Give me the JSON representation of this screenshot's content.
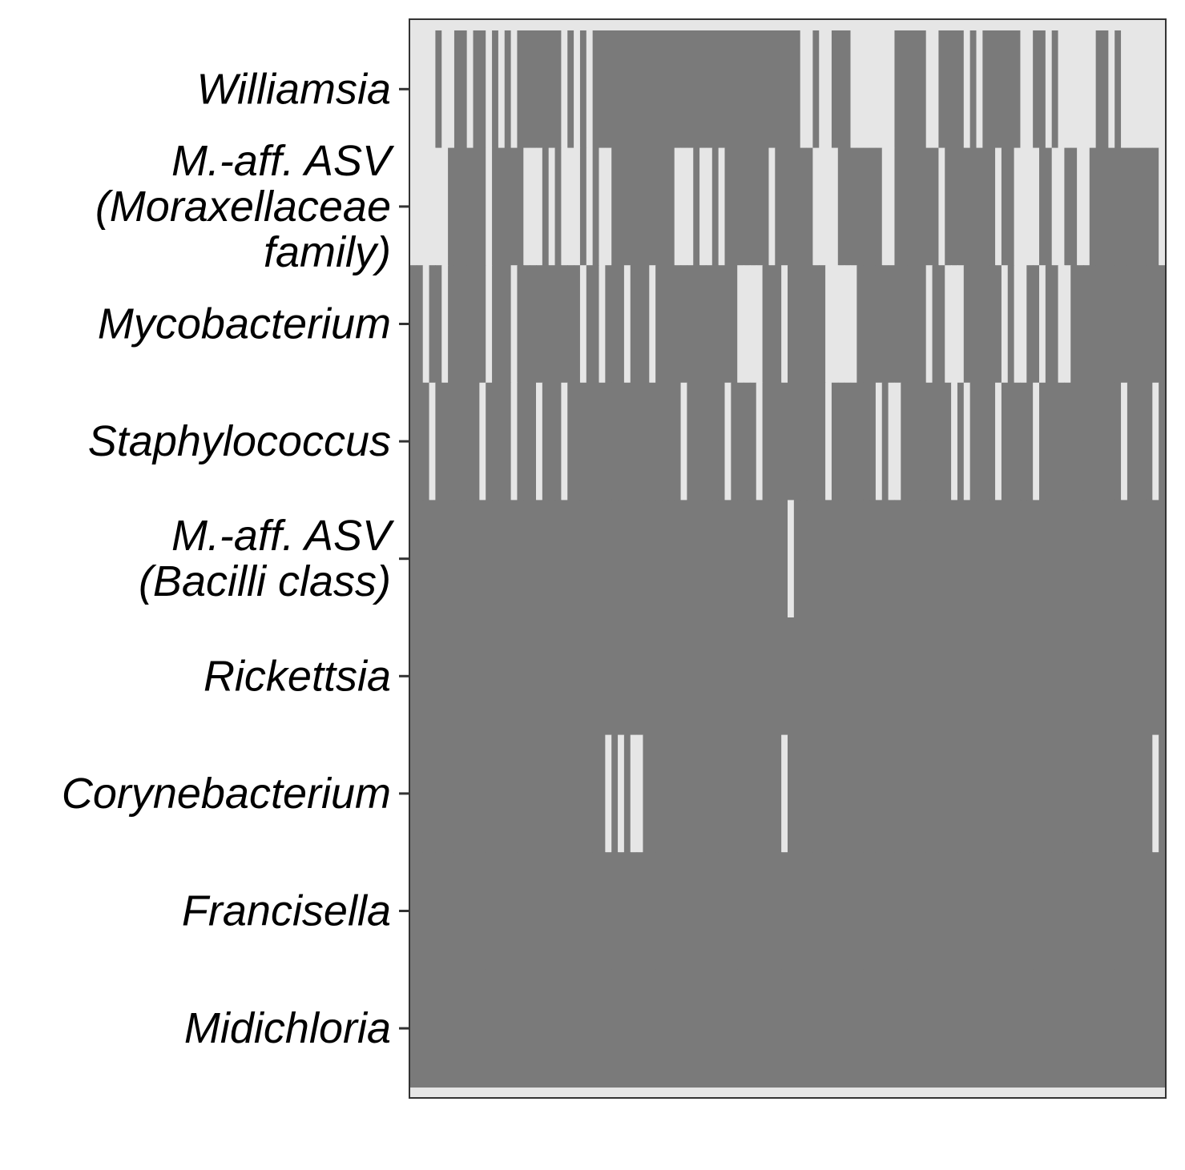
{
  "chart_data": {
    "type": "heatmap",
    "title": "",
    "xlabel": "",
    "ylabel": "",
    "legend": "none",
    "grid": false,
    "colors": {
      "present": "#7a7a7a",
      "absent": "#e6e6e6",
      "frame": "#333333",
      "background": "#ffffff"
    },
    "value_meaning": "1 = dark cell, 0 = light cell",
    "n_samples": 120,
    "rows": [
      {
        "label_lines": [
          "Williamsia"
        ],
        "values": [
          0,
          0,
          0,
          0,
          1,
          0,
          0,
          1,
          1,
          0,
          1,
          1,
          0,
          1,
          0,
          1,
          0,
          1,
          1,
          1,
          1,
          1,
          1,
          1,
          0,
          1,
          0,
          1,
          0,
          1,
          1,
          1,
          1,
          1,
          1,
          1,
          1,
          1,
          1,
          1,
          1,
          1,
          1,
          1,
          1,
          1,
          1,
          1,
          1,
          1,
          1,
          1,
          1,
          1,
          1,
          1,
          1,
          1,
          1,
          1,
          1,
          1,
          0,
          0,
          1,
          0,
          0,
          1,
          1,
          1,
          0,
          0,
          0,
          0,
          0,
          0,
          0,
          1,
          1,
          1,
          1,
          1,
          0,
          0,
          1,
          1,
          1,
          1,
          0,
          1,
          0,
          1,
          1,
          1,
          1,
          1,
          1,
          0,
          0,
          1,
          1,
          0,
          1,
          0,
          0,
          0,
          0,
          0,
          0,
          1,
          1,
          0,
          1,
          0,
          0,
          0,
          0,
          0,
          0,
          0
        ]
      },
      {
        "label_lines": [
          "M.-aff. ASV",
          "(Moraxellaceae",
          "family)"
        ],
        "values": [
          0,
          0,
          0,
          0,
          0,
          0,
          1,
          1,
          1,
          1,
          1,
          1,
          0,
          1,
          1,
          1,
          1,
          1,
          0,
          0,
          0,
          1,
          0,
          1,
          0,
          0,
          0,
          1,
          0,
          1,
          0,
          0,
          1,
          1,
          1,
          1,
          1,
          1,
          1,
          1,
          1,
          1,
          0,
          0,
          0,
          1,
          0,
          0,
          1,
          0,
          1,
          1,
          1,
          1,
          1,
          1,
          1,
          0,
          1,
          1,
          1,
          1,
          1,
          1,
          0,
          0,
          0,
          0,
          1,
          1,
          1,
          1,
          1,
          1,
          1,
          0,
          0,
          1,
          1,
          1,
          1,
          1,
          1,
          1,
          0,
          1,
          1,
          1,
          1,
          1,
          1,
          1,
          1,
          0,
          1,
          1,
          0,
          0,
          0,
          0,
          1,
          1,
          0,
          0,
          1,
          1,
          0,
          0,
          1,
          1,
          1,
          1,
          1,
          1,
          1,
          1,
          1,
          1,
          1,
          0
        ]
      },
      {
        "label_lines": [
          "Mycobacterium"
        ],
        "values": [
          1,
          1,
          0,
          1,
          1,
          0,
          1,
          1,
          1,
          1,
          1,
          1,
          0,
          1,
          1,
          1,
          0,
          1,
          1,
          1,
          1,
          1,
          1,
          1,
          1,
          1,
          1,
          0,
          1,
          1,
          0,
          1,
          1,
          1,
          0,
          1,
          1,
          1,
          0,
          1,
          1,
          1,
          1,
          1,
          1,
          1,
          1,
          1,
          1,
          1,
          1,
          1,
          0,
          0,
          0,
          0,
          1,
          1,
          1,
          0,
          1,
          1,
          1,
          1,
          1,
          1,
          0,
          0,
          0,
          0,
          0,
          1,
          1,
          1,
          1,
          1,
          1,
          1,
          1,
          1,
          1,
          1,
          0,
          1,
          1,
          0,
          0,
          0,
          1,
          1,
          1,
          1,
          1,
          1,
          0,
          1,
          0,
          0,
          1,
          1,
          0,
          1,
          1,
          0,
          0,
          1,
          1,
          1,
          1,
          1,
          1,
          1,
          1,
          1,
          1,
          1,
          1,
          1,
          1,
          1
        ]
      },
      {
        "label_lines": [
          "Staphylococcus"
        ],
        "values": [
          1,
          1,
          1,
          0,
          1,
          1,
          1,
          1,
          1,
          1,
          1,
          0,
          1,
          1,
          1,
          1,
          0,
          1,
          1,
          1,
          0,
          1,
          1,
          1,
          0,
          1,
          1,
          1,
          1,
          1,
          1,
          1,
          1,
          1,
          1,
          1,
          1,
          1,
          1,
          1,
          1,
          1,
          1,
          0,
          1,
          1,
          1,
          1,
          1,
          1,
          0,
          1,
          1,
          1,
          1,
          0,
          1,
          1,
          1,
          1,
          1,
          1,
          1,
          1,
          1,
          1,
          0,
          1,
          1,
          1,
          1,
          1,
          1,
          1,
          0,
          1,
          0,
          0,
          1,
          1,
          1,
          1,
          1,
          1,
          1,
          1,
          0,
          1,
          0,
          1,
          1,
          1,
          1,
          0,
          1,
          1,
          1,
          1,
          1,
          0,
          1,
          1,
          1,
          1,
          1,
          1,
          1,
          1,
          1,
          1,
          1,
          1,
          1,
          0,
          1,
          1,
          1,
          1,
          0,
          1
        ]
      },
      {
        "label_lines": [
          "M.-aff. ASV",
          "(Bacilli class)"
        ],
        "values": [
          1,
          1,
          1,
          1,
          1,
          1,
          1,
          1,
          1,
          1,
          1,
          1,
          1,
          1,
          1,
          1,
          1,
          1,
          1,
          1,
          1,
          1,
          1,
          1,
          1,
          1,
          1,
          1,
          1,
          1,
          1,
          1,
          1,
          1,
          1,
          1,
          1,
          1,
          1,
          1,
          1,
          1,
          1,
          1,
          1,
          1,
          1,
          1,
          1,
          1,
          1,
          1,
          1,
          1,
          1,
          1,
          1,
          1,
          1,
          1,
          0,
          1,
          1,
          1,
          1,
          1,
          1,
          1,
          1,
          1,
          1,
          1,
          1,
          1,
          1,
          1,
          1,
          1,
          1,
          1,
          1,
          1,
          1,
          1,
          1,
          1,
          1,
          1,
          1,
          1,
          1,
          1,
          1,
          1,
          1,
          1,
          1,
          1,
          1,
          1,
          1,
          1,
          1,
          1,
          1,
          1,
          1,
          1,
          1,
          1,
          1,
          1,
          1,
          1,
          1,
          1,
          1,
          1,
          1,
          1
        ]
      },
      {
        "label_lines": [
          "Rickettsia"
        ],
        "values": [
          1,
          1,
          1,
          1,
          1,
          1,
          1,
          1,
          1,
          1,
          1,
          1,
          1,
          1,
          1,
          1,
          1,
          1,
          1,
          1,
          1,
          1,
          1,
          1,
          1,
          1,
          1,
          1,
          1,
          1,
          1,
          1,
          1,
          1,
          1,
          1,
          1,
          1,
          1,
          1,
          1,
          1,
          1,
          1,
          1,
          1,
          1,
          1,
          1,
          1,
          1,
          1,
          1,
          1,
          1,
          1,
          1,
          1,
          1,
          1,
          1,
          1,
          1,
          1,
          1,
          1,
          1,
          1,
          1,
          1,
          1,
          1,
          1,
          1,
          1,
          1,
          1,
          1,
          1,
          1,
          1,
          1,
          1,
          1,
          1,
          1,
          1,
          1,
          1,
          1,
          1,
          1,
          1,
          1,
          1,
          1,
          1,
          1,
          1,
          1,
          1,
          1,
          1,
          1,
          1,
          1,
          1,
          1,
          1,
          1,
          1,
          1,
          1,
          1,
          1,
          1,
          1,
          1,
          1,
          1
        ]
      },
      {
        "label_lines": [
          "Corynebacterium"
        ],
        "values": [
          1,
          1,
          1,
          1,
          1,
          1,
          1,
          1,
          1,
          1,
          1,
          1,
          1,
          1,
          1,
          1,
          1,
          1,
          1,
          1,
          1,
          1,
          1,
          1,
          1,
          1,
          1,
          1,
          1,
          1,
          1,
          0,
          1,
          0,
          1,
          0,
          0,
          1,
          1,
          1,
          1,
          1,
          1,
          1,
          1,
          1,
          1,
          1,
          1,
          1,
          1,
          1,
          1,
          1,
          1,
          1,
          1,
          1,
          1,
          0,
          1,
          1,
          1,
          1,
          1,
          1,
          1,
          1,
          1,
          1,
          1,
          1,
          1,
          1,
          1,
          1,
          1,
          1,
          1,
          1,
          1,
          1,
          1,
          1,
          1,
          1,
          1,
          1,
          1,
          1,
          1,
          1,
          1,
          1,
          1,
          1,
          1,
          1,
          1,
          1,
          1,
          1,
          1,
          1,
          1,
          1,
          1,
          1,
          1,
          1,
          1,
          1,
          1,
          1,
          1,
          1,
          1,
          1,
          0,
          1
        ]
      },
      {
        "label_lines": [
          "Francisella"
        ],
        "values": [
          1,
          1,
          1,
          1,
          1,
          1,
          1,
          1,
          1,
          1,
          1,
          1,
          1,
          1,
          1,
          1,
          1,
          1,
          1,
          1,
          1,
          1,
          1,
          1,
          1,
          1,
          1,
          1,
          1,
          1,
          1,
          1,
          1,
          1,
          1,
          1,
          1,
          1,
          1,
          1,
          1,
          1,
          1,
          1,
          1,
          1,
          1,
          1,
          1,
          1,
          1,
          1,
          1,
          1,
          1,
          1,
          1,
          1,
          1,
          1,
          1,
          1,
          1,
          1,
          1,
          1,
          1,
          1,
          1,
          1,
          1,
          1,
          1,
          1,
          1,
          1,
          1,
          1,
          1,
          1,
          1,
          1,
          1,
          1,
          1,
          1,
          1,
          1,
          1,
          1,
          1,
          1,
          1,
          1,
          1,
          1,
          1,
          1,
          1,
          1,
          1,
          1,
          1,
          1,
          1,
          1,
          1,
          1,
          1,
          1,
          1,
          1,
          1,
          1,
          1,
          1,
          1,
          1,
          1,
          1
        ]
      },
      {
        "label_lines": [
          "Midichloria"
        ],
        "values": [
          1,
          1,
          1,
          1,
          1,
          1,
          1,
          1,
          1,
          1,
          1,
          1,
          1,
          1,
          1,
          1,
          1,
          1,
          1,
          1,
          1,
          1,
          1,
          1,
          1,
          1,
          1,
          1,
          1,
          1,
          1,
          1,
          1,
          1,
          1,
          1,
          1,
          1,
          1,
          1,
          1,
          1,
          1,
          1,
          1,
          1,
          1,
          1,
          1,
          1,
          1,
          1,
          1,
          1,
          1,
          1,
          1,
          1,
          1,
          1,
          1,
          1,
          1,
          1,
          1,
          1,
          1,
          1,
          1,
          1,
          1,
          1,
          1,
          1,
          1,
          1,
          1,
          1,
          1,
          1,
          1,
          1,
          1,
          1,
          1,
          1,
          1,
          1,
          1,
          1,
          1,
          1,
          1,
          1,
          1,
          1,
          1,
          1,
          1,
          1,
          1,
          1,
          1,
          1,
          1,
          1,
          1,
          1,
          1,
          1,
          1,
          1,
          1,
          1,
          1,
          1,
          1,
          1,
          1,
          1
        ]
      }
    ]
  }
}
